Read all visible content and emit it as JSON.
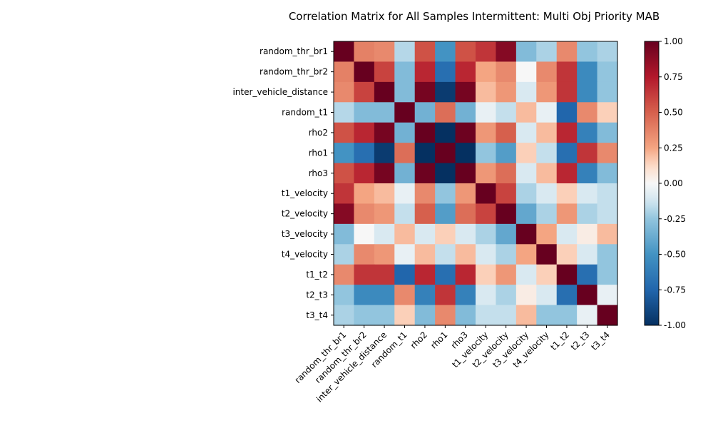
{
  "chart_data": {
    "type": "heatmap",
    "title": "Correlation Matrix for All Samples Intermittent: Multi Obj Priority MAB",
    "labels": [
      "random_thr_br1",
      "random_thr_br2",
      "inter_vehicle_distance",
      "random_t1",
      "rho2",
      "rho1",
      "rho3",
      "t1_velocity",
      "t2_velocity",
      "t3_velocity",
      "t4_velocity",
      "t1_t2",
      "t2_t3",
      "t3_t4"
    ],
    "matrix": [
      [
        1.0,
        0.38,
        0.35,
        -0.18,
        0.55,
        -0.5,
        0.55,
        0.65,
        0.9,
        -0.3,
        -0.2,
        0.35,
        -0.25,
        -0.2
      ],
      [
        0.38,
        1.0,
        0.6,
        -0.3,
        0.7,
        -0.7,
        0.7,
        0.25,
        0.35,
        0.0,
        0.35,
        0.65,
        -0.55,
        -0.25
      ],
      [
        0.35,
        0.6,
        1.0,
        -0.3,
        0.95,
        -0.95,
        0.95,
        0.2,
        0.3,
        -0.1,
        0.3,
        0.65,
        -0.55,
        -0.25
      ],
      [
        -0.18,
        -0.3,
        -0.3,
        1.0,
        -0.35,
        0.45,
        -0.35,
        -0.05,
        -0.15,
        0.2,
        -0.05,
        -0.75,
        0.35,
        0.15
      ],
      [
        0.55,
        0.7,
        0.95,
        -0.35,
        1.0,
        -1.0,
        0.98,
        0.3,
        0.5,
        -0.1,
        0.2,
        0.7,
        -0.6,
        -0.3
      ],
      [
        -0.5,
        -0.7,
        -0.95,
        0.45,
        -1.0,
        1.0,
        -1.0,
        -0.25,
        -0.45,
        0.15,
        -0.15,
        -0.7,
        0.65,
        0.35
      ],
      [
        0.55,
        0.7,
        0.95,
        -0.35,
        0.98,
        -1.0,
        1.0,
        0.3,
        0.45,
        -0.1,
        0.2,
        0.7,
        -0.6,
        -0.3
      ],
      [
        0.65,
        0.25,
        0.2,
        -0.05,
        0.35,
        -0.25,
        0.3,
        1.0,
        0.6,
        -0.2,
        -0.1,
        0.15,
        -0.1,
        -0.15
      ],
      [
        0.9,
        0.35,
        0.3,
        -0.15,
        0.5,
        -0.45,
        0.45,
        0.6,
        1.0,
        -0.4,
        -0.2,
        0.3,
        -0.2,
        -0.15
      ],
      [
        -0.3,
        0.0,
        -0.1,
        0.2,
        -0.1,
        0.15,
        -0.1,
        -0.2,
        -0.4,
        1.0,
        0.25,
        -0.1,
        0.05,
        0.2
      ],
      [
        -0.2,
        0.35,
        0.3,
        -0.05,
        0.2,
        -0.15,
        0.2,
        -0.1,
        -0.2,
        0.25,
        1.0,
        0.15,
        -0.1,
        -0.25
      ],
      [
        0.35,
        0.65,
        0.65,
        -0.75,
        0.7,
        -0.7,
        0.7,
        0.15,
        0.3,
        -0.1,
        0.15,
        1.0,
        -0.7,
        -0.25
      ],
      [
        -0.25,
        -0.55,
        -0.55,
        0.35,
        -0.6,
        0.65,
        -0.6,
        -0.1,
        -0.2,
        0.05,
        -0.1,
        -0.7,
        1.0,
        -0.05
      ],
      [
        -0.2,
        -0.25,
        -0.25,
        0.15,
        -0.3,
        0.35,
        -0.3,
        -0.15,
        -0.15,
        0.2,
        -0.25,
        -0.25,
        -0.05,
        1.0
      ]
    ],
    "colormap": "RdBu_r",
    "vmin": -1.0,
    "vmax": 1.0,
    "colorbar_ticks": [
      "-1.00",
      "-0.75",
      "-0.50",
      "-0.25",
      "0.00",
      "0.25",
      "0.50",
      "0.75",
      "1.00"
    ]
  }
}
